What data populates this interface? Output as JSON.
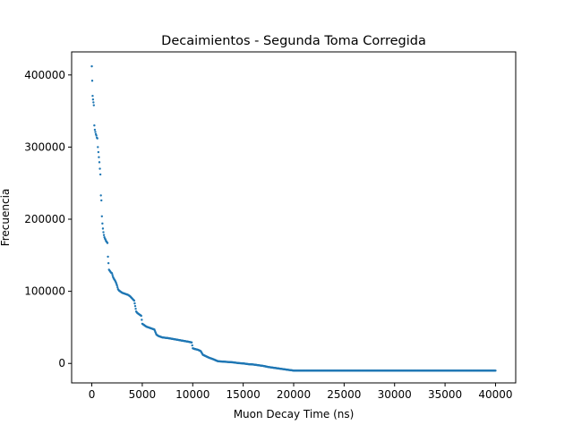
{
  "chart_data": {
    "type": "scatter",
    "title": "Decaimientos - Segunda Toma Corregida",
    "xlabel": "Muon Decay Time (ns)",
    "ylabel": "Frecuencia",
    "xlim": [
      -2000,
      42000
    ],
    "ylim": [
      -27000,
      432000
    ],
    "xticks": [
      0,
      5000,
      10000,
      15000,
      20000,
      25000,
      30000,
      35000,
      40000
    ],
    "yticks": [
      0,
      100000,
      200000,
      300000,
      400000
    ],
    "xtick_labels": [
      "0",
      "5000",
      "10000",
      "15000",
      "20000",
      "25000",
      "30000",
      "35000",
      "40000"
    ],
    "ytick_labels": [
      "0",
      "100000",
      "200000",
      "300000",
      "400000"
    ],
    "grid": false,
    "series": [
      {
        "color": "#1f77b4",
        "marker": "dot",
        "x": [
          0,
          40,
          80,
          120,
          160,
          200,
          250,
          300,
          350,
          400,
          450,
          500,
          550,
          600,
          650,
          700,
          750,
          800,
          850,
          900,
          950,
          1000,
          1050,
          1100,
          1150,
          1200,
          1250,
          1300,
          1350,
          1400,
          1450,
          1500,
          1550,
          1600,
          1700,
          1800,
          1900,
          2000,
          2100,
          2200,
          2300,
          2400,
          2500,
          2600,
          2700,
          2800,
          2900,
          3000,
          3200,
          3400,
          3600,
          3800,
          4000,
          4200,
          4400,
          4500,
          4600,
          4700,
          4800,
          4900,
          5000,
          5200,
          5400,
          5600,
          5800,
          6000,
          6200,
          6400,
          6600,
          6800,
          7000,
          7300,
          7600,
          8000,
          8400,
          8800,
          9200,
          9600,
          9900,
          10000,
          10200,
          10500,
          10800,
          11000,
          11300,
          11600,
          12000,
          12500,
          13000,
          13500,
          14000,
          14500,
          15000,
          15500,
          16000,
          16500,
          17000,
          17500,
          18000,
          18500,
          19000,
          19500,
          19800,
          20000,
          21000,
          22000,
          23000,
          24000,
          25000,
          26000,
          27000,
          28000,
          29000,
          30000,
          31000,
          32000,
          33000,
          34000,
          35000,
          36000,
          37000,
          38000,
          39000,
          40000
        ],
        "y": [
          412000,
          392000,
          371000,
          366000,
          362000,
          358000,
          330000,
          324000,
          321000,
          318000,
          316000,
          313000,
          312000,
          300000,
          293000,
          286000,
          279000,
          270000,
          262000,
          233000,
          226000,
          204000,
          194000,
          187000,
          182000,
          178000,
          175000,
          173000,
          172000,
          170000,
          169000,
          168000,
          167000,
          148000,
          130000,
          128000,
          126000,
          125000,
          120000,
          117000,
          115000,
          112000,
          108000,
          103000,
          101000,
          100000,
          99000,
          98000,
          97000,
          96000,
          95000,
          93000,
          90000,
          87000,
          72000,
          70000,
          69000,
          68000,
          67000,
          66000,
          55000,
          53000,
          51000,
          50000,
          49000,
          48000,
          47000,
          40000,
          38000,
          37000,
          36000,
          35500,
          35000,
          34000,
          33000,
          32000,
          31000,
          30000,
          29000,
          21000,
          20000,
          19000,
          17000,
          12000,
          10000,
          8000,
          6000,
          3000,
          2500,
          2000,
          1500,
          500,
          0,
          -1000,
          -1500,
          -2500,
          -3500,
          -5000,
          -6000,
          -7000,
          -8000,
          -9000,
          -9500,
          -10000,
          -10000,
          -10000,
          -10000,
          -10000,
          -10000,
          -10000,
          -10000,
          -10000,
          -10000,
          -10000,
          -10000,
          -10000,
          -10000,
          -10000,
          -10000,
          -10000,
          -10000,
          -10000,
          -10000,
          -10000
        ]
      }
    ]
  }
}
